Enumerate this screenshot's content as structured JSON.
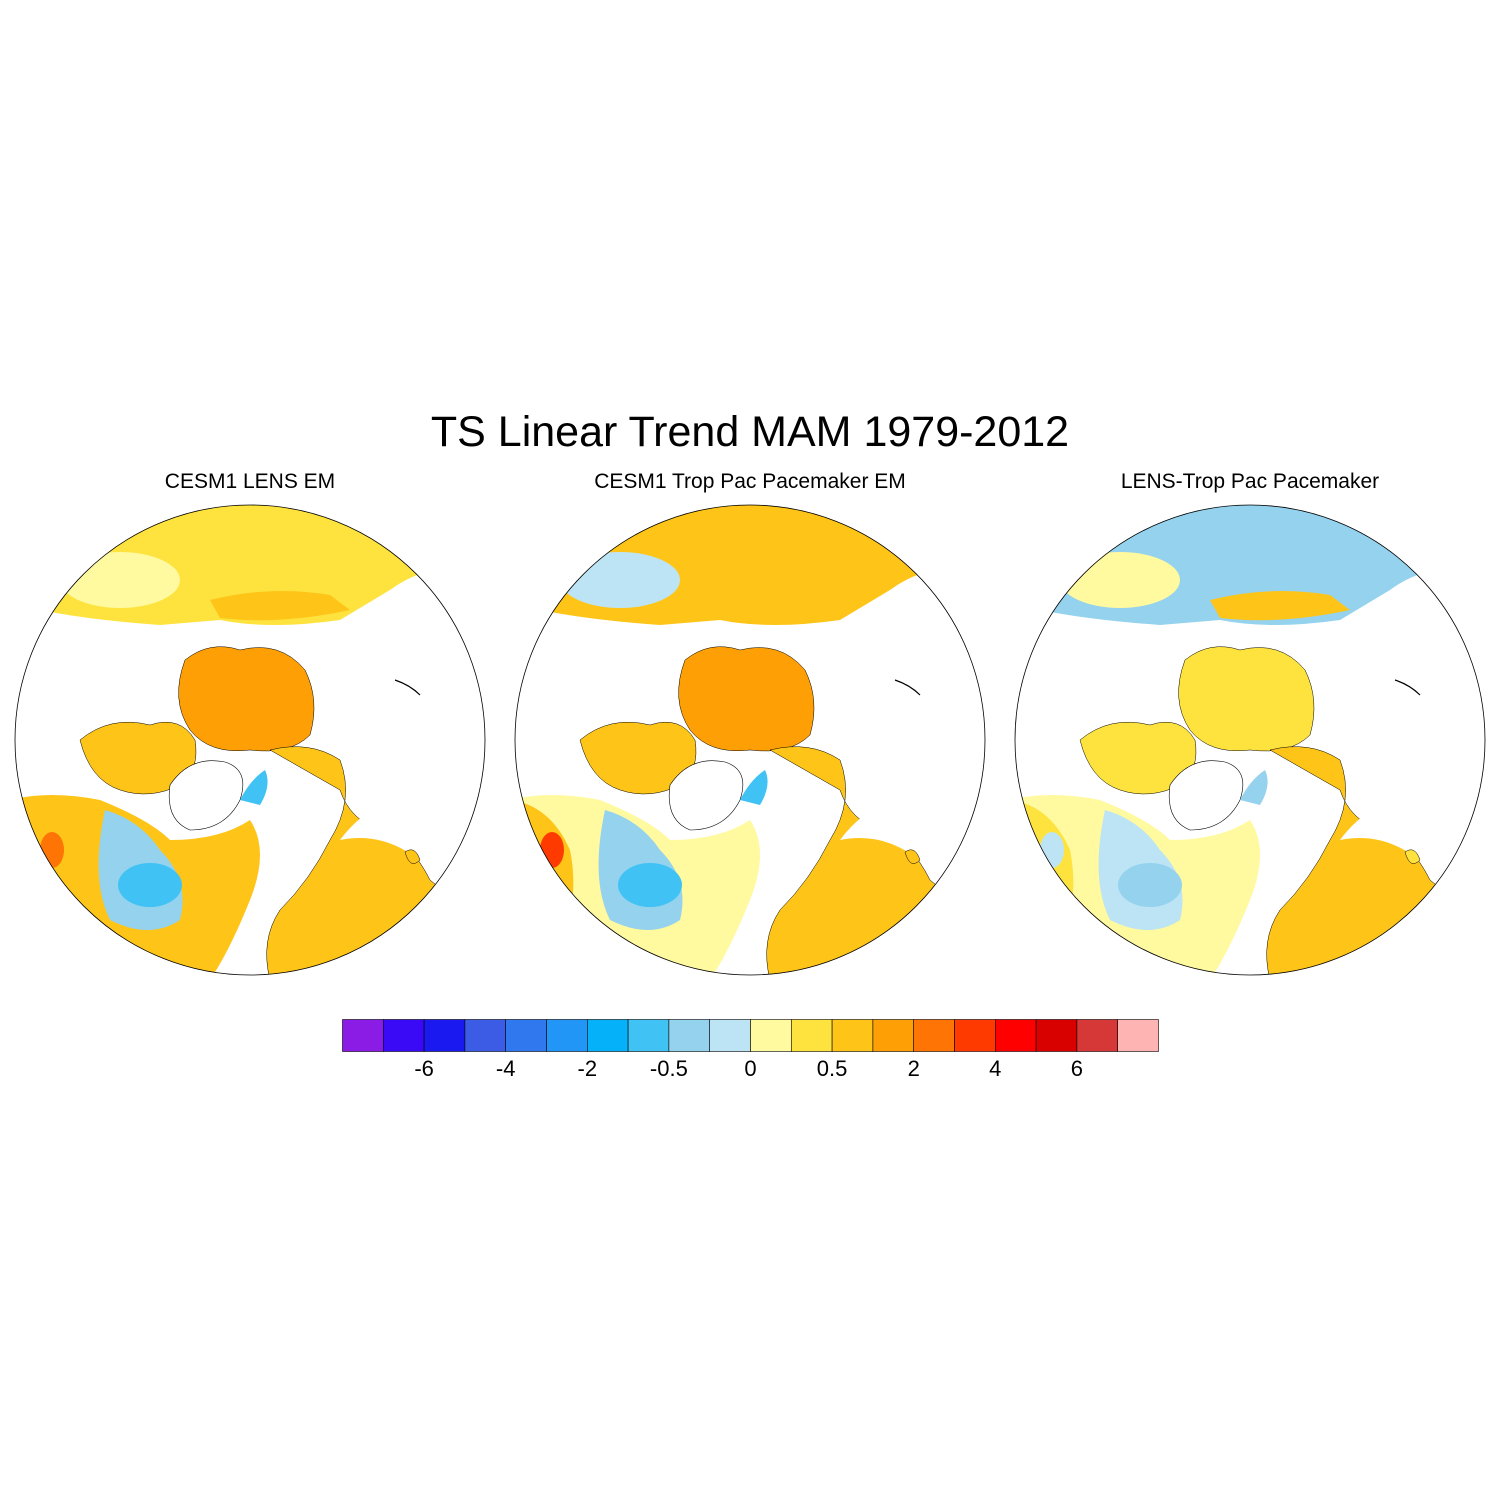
{
  "title": "TS Linear Trend MAM 1979-2012",
  "panels": [
    {
      "title": "CESM1 LENS EM",
      "scheme": "lens"
    },
    {
      "title": "CESM1 Trop Pac Pacemaker EM",
      "scheme": "pace"
    },
    {
      "title": "LENS-Trop Pac Pacemaker",
      "scheme": "diff"
    }
  ],
  "colorbar": {
    "colors": [
      "#8a1ce6",
      "#3a0af7",
      "#1a1af0",
      "#3c5ce6",
      "#2f78ee",
      "#2196f6",
      "#05b2f9",
      "#40c2f4",
      "#94d2ee",
      "#bde4f4",
      "#fff9a0",
      "#fee33f",
      "#fec417",
      "#fe9f05",
      "#fe7405",
      "#fe3a00",
      "#fe0000",
      "#d90000",
      "#d63838",
      "#ffb4b4"
    ],
    "tick_labels": [
      "-6",
      "-4",
      "-2",
      "-0.5",
      "0",
      "0.5",
      "2",
      "4",
      "6"
    ]
  }
}
